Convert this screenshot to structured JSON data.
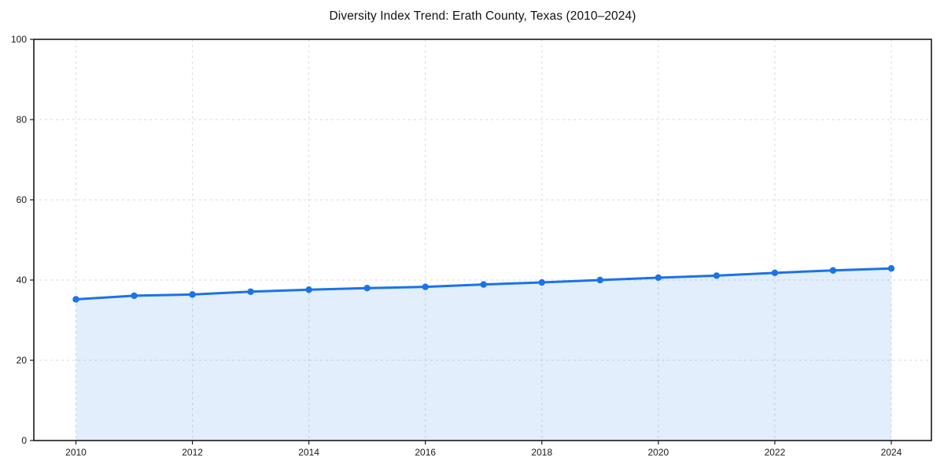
{
  "page": {
    "background": "#ffffff"
  },
  "chart_data": {
    "type": "line",
    "title": "Diversity Index Trend: Erath County, Texas (2010–2024)",
    "x": [
      2010,
      2011,
      2012,
      2013,
      2014,
      2015,
      2016,
      2017,
      2018,
      2019,
      2020,
      2021,
      2022,
      2023,
      2024
    ],
    "series": [
      {
        "name": "Diversity Index",
        "values": [
          35.2,
          36.1,
          36.4,
          37.1,
          37.6,
          38.0,
          38.3,
          38.9,
          39.4,
          40.0,
          40.6,
          41.1,
          41.8,
          42.4,
          42.9
        ]
      }
    ],
    "xlabel": "",
    "ylabel": "",
    "xlim": [
      2010,
      2024
    ],
    "ylim": [
      0,
      100
    ],
    "xticks": [
      2010,
      2012,
      2014,
      2016,
      2018,
      2020,
      2022,
      2024
    ],
    "yticks": [
      0,
      20,
      40,
      60,
      80,
      100
    ],
    "grid": true,
    "grid_style": "dashed",
    "legend_position": "none",
    "area_fill": true,
    "marker": "circle",
    "colors": {
      "line": "#1a73e8",
      "marker": "#1a73e8",
      "area": "#1a73e8",
      "area_opacity": "0.12",
      "grid": "#d9d9d9",
      "axis": "#1a1a1a",
      "tick_label": "#1a1a1a",
      "title": "#111111",
      "background": "#ffffff"
    }
  }
}
